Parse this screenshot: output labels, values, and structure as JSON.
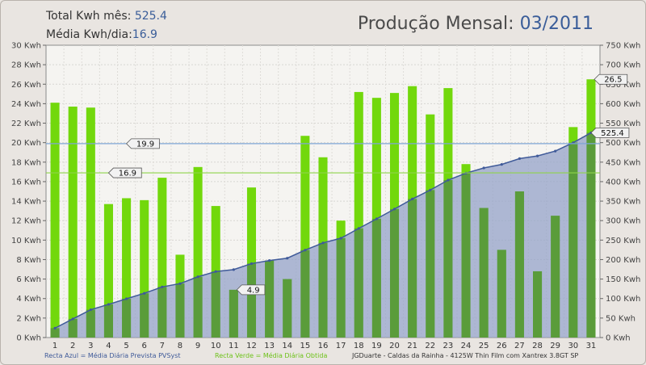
{
  "header": {
    "total_label": "Total Kwh mês:",
    "total_value": "525.4",
    "avg_label": "Média Kwh/dia:",
    "avg_value": "16.9",
    "title_label": "Produção Mensal:",
    "title_value": "03/2011"
  },
  "footer": {
    "blue_note": "Recta Azul = Média Diária Prevista PVSyst",
    "green_note": "Recta Verde = Média Diária Obtida",
    "credits": "JGDuarte  -  Caldas da Rainha  -  4125W Thin Film com Xantrex 3.8GT SP"
  },
  "colors": {
    "bar": "#72d80c",
    "bar_overlap": "#5a9c3a",
    "area_fill": "#94a3c8",
    "area_line": "#3f5a99",
    "blue_line": "#7ea6d6",
    "green_line": "#8fd34a",
    "plot_bg": "#f5f4f1"
  },
  "chart_data": {
    "type": "bar",
    "categories": [
      "1",
      "2",
      "3",
      "4",
      "5",
      "6",
      "7",
      "8",
      "9",
      "10",
      "11",
      "12",
      "13",
      "14",
      "15",
      "16",
      "17",
      "18",
      "19",
      "20",
      "21",
      "22",
      "23",
      "24",
      "25",
      "26",
      "27",
      "28",
      "29",
      "30",
      "31"
    ],
    "series": [
      {
        "values": [
          24.1,
          23.7,
          23.6,
          13.7,
          14.3,
          14.1,
          16.4,
          8.5,
          17.5,
          13.5,
          4.9,
          15.4,
          7.9,
          6.0,
          20.7,
          18.5,
          12.0,
          25.2,
          24.6,
          25.1,
          25.8,
          22.9,
          25.6,
          17.8,
          13.3,
          9.0,
          15.0,
          6.8,
          12.5,
          21.6,
          26.5
        ]
      },
      {
        "values": [
          24.1,
          47.8,
          71.4,
          85.1,
          99.4,
          113.5,
          129.9,
          138.4,
          155.9,
          169.4,
          174.3,
          189.7,
          197.6,
          203.6,
          224.3,
          242.8,
          254.8,
          280.0,
          304.6,
          329.7,
          355.5,
          378.4,
          404.0,
          421.8,
          435.1,
          444.1,
          459.1,
          465.9,
          478.4,
          500.0,
          525.4
        ],
        "axis": "right"
      }
    ],
    "reference_lines": [
      {
        "value": 19.9,
        "label": "19.9"
      },
      {
        "value": 16.9,
        "label": "16.9"
      }
    ],
    "point_labels": [
      {
        "category": "11",
        "label": "4.9"
      },
      {
        "category": "31",
        "label": "26.5"
      },
      {
        "category": "31",
        "label": "525.4",
        "axis": "right"
      }
    ],
    "y_ticks": [
      "0 Kwh",
      "2 Kwh",
      "4 Kwh",
      "6 Kwh",
      "8 Kwh",
      "10 Kwh",
      "12 Kwh",
      "14 Kwh",
      "16 Kwh",
      "18 Kwh",
      "20 Kwh",
      "22 Kwh",
      "24 Kwh",
      "26 Kwh",
      "28 Kwh",
      "30 Kwh"
    ],
    "y2_ticks": [
      "0 Kwh",
      "50 Kwh",
      "100 Kwh",
      "150 Kwh",
      "200 Kwh",
      "250 Kwh",
      "300 Kwh",
      "350 Kwh",
      "400 Kwh",
      "450 Kwh",
      "500 Kwh",
      "550 Kwh",
      "600 Kwh",
      "650 Kwh",
      "700 Kwh",
      "750 Kwh"
    ],
    "ylim": [
      0,
      30
    ],
    "y2lim": [
      0,
      750
    ],
    "grid": true
  }
}
